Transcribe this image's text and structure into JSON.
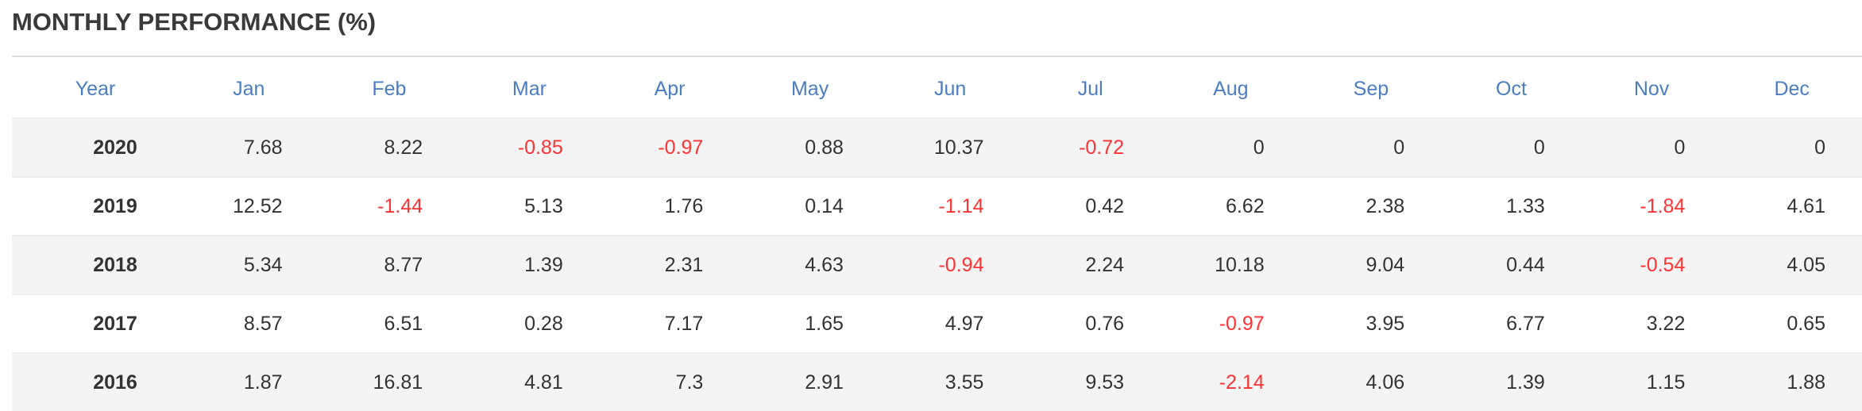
{
  "title": "MONTHLY PERFORMANCE (%)",
  "table": {
    "header": [
      "Year",
      "Jan",
      "Feb",
      "Mar",
      "Apr",
      "May",
      "Jun",
      "Jul",
      "Aug",
      "Sep",
      "Oct",
      "Nov",
      "Dec"
    ],
    "rows": [
      [
        "2020",
        "7.68",
        "8.22",
        "-0.85",
        "-0.97",
        "0.88",
        "10.37",
        "-0.72",
        "0",
        "0",
        "0",
        "0",
        "0"
      ],
      [
        "2019",
        "12.52",
        "-1.44",
        "5.13",
        "1.76",
        "0.14",
        "-1.14",
        "0.42",
        "6.62",
        "2.38",
        "1.33",
        "-1.84",
        "4.61"
      ],
      [
        "2018",
        "5.34",
        "8.77",
        "1.39",
        "2.31",
        "4.63",
        "-0.94",
        "2.24",
        "10.18",
        "9.04",
        "0.44",
        "-0.54",
        "4.05"
      ],
      [
        "2017",
        "8.57",
        "6.51",
        "0.28",
        "7.17",
        "1.65",
        "4.97",
        "0.76",
        "-0.97",
        "3.95",
        "6.77",
        "3.22",
        "0.65"
      ],
      [
        "2016",
        "1.87",
        "16.81",
        "4.81",
        "7.3",
        "2.91",
        "3.55",
        "9.53",
        "-2.14",
        "4.06",
        "1.39",
        "1.15",
        "1.88"
      ]
    ],
    "negative_color": "#ff3333"
  }
}
